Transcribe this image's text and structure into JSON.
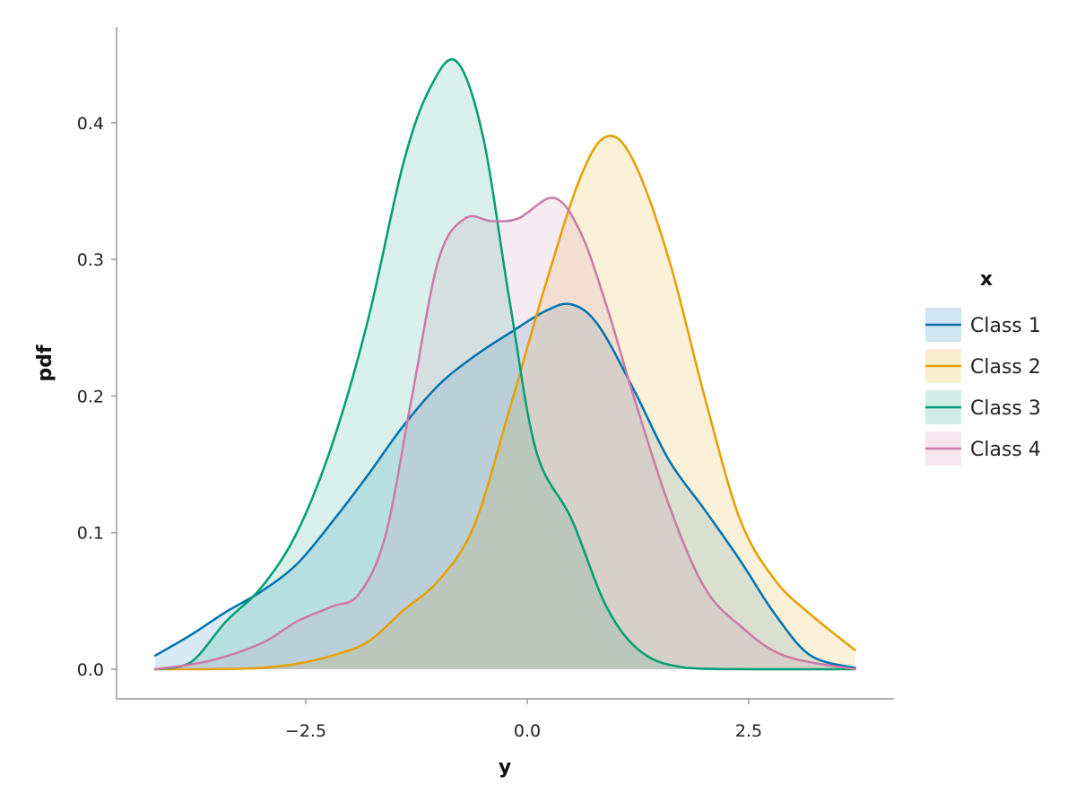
{
  "chart_data": {
    "type": "area",
    "title": "",
    "xlabel": "y",
    "ylabel": "pdf",
    "xlim": [
      -4.3,
      4.1
    ],
    "ylim": [
      -0.02,
      0.47
    ],
    "x_ticks": [
      -2.5,
      0.0,
      2.5
    ],
    "x_tick_labels": [
      "−2.5",
      "0.0",
      "2.5"
    ],
    "y_ticks": [
      0.0,
      0.1,
      0.2,
      0.3,
      0.4
    ],
    "y_tick_labels": [
      "0.0",
      "0.1",
      "0.2",
      "0.3",
      "0.4"
    ],
    "grid": false,
    "legend": {
      "title": "x",
      "position": "right"
    },
    "series": [
      {
        "name": "Class 1",
        "color": "#0072B2",
        "x": [
          -4.2,
          -3.8,
          -3.4,
          -3.0,
          -2.6,
          -2.2,
          -1.8,
          -1.4,
          -1.0,
          -0.6,
          -0.2,
          0.2,
          0.5,
          0.8,
          1.2,
          1.6,
          2.0,
          2.4,
          2.8,
          3.2,
          3.7
        ],
        "y": [
          0.01,
          0.025,
          0.042,
          0.057,
          0.077,
          0.108,
          0.142,
          0.178,
          0.208,
          0.229,
          0.246,
          0.262,
          0.267,
          0.252,
          0.205,
          0.153,
          0.117,
          0.08,
          0.04,
          0.01,
          0.001
        ]
      },
      {
        "name": "Class 2",
        "color": "#E69F00",
        "x": [
          -4.2,
          -3.6,
          -3.0,
          -2.6,
          -2.2,
          -1.8,
          -1.4,
          -1.0,
          -0.6,
          -0.2,
          0.2,
          0.6,
          0.9,
          1.2,
          1.6,
          2.0,
          2.4,
          2.8,
          3.2,
          3.7
        ],
        "y": [
          0.0,
          0.0,
          0.001,
          0.004,
          0.01,
          0.02,
          0.043,
          0.065,
          0.105,
          0.19,
          0.28,
          0.36,
          0.39,
          0.372,
          0.3,
          0.2,
          0.11,
          0.065,
          0.04,
          0.014
        ]
      },
      {
        "name": "Class 3",
        "color": "#009E73",
        "x": [
          -4.2,
          -3.8,
          -3.4,
          -3.0,
          -2.6,
          -2.2,
          -1.8,
          -1.4,
          -1.1,
          -0.8,
          -0.5,
          -0.2,
          0.1,
          0.5,
          0.9,
          1.3,
          1.8,
          2.5,
          3.7
        ],
        "y": [
          0.0,
          0.005,
          0.035,
          0.06,
          0.1,
          0.165,
          0.255,
          0.37,
          0.425,
          0.445,
          0.39,
          0.27,
          0.16,
          0.11,
          0.045,
          0.012,
          0.001,
          0.0,
          0.0
        ]
      },
      {
        "name": "Class 4",
        "color": "#CC79A7",
        "x": [
          -4.2,
          -3.6,
          -3.0,
          -2.6,
          -2.2,
          -1.9,
          -1.6,
          -1.3,
          -1.0,
          -0.7,
          -0.4,
          -0.1,
          0.3,
          0.6,
          0.9,
          1.2,
          1.6,
          2.0,
          2.4,
          2.9,
          3.7
        ],
        "y": [
          0.0,
          0.006,
          0.019,
          0.035,
          0.046,
          0.055,
          0.098,
          0.2,
          0.3,
          0.33,
          0.328,
          0.33,
          0.345,
          0.32,
          0.265,
          0.2,
          0.12,
          0.06,
          0.032,
          0.01,
          0.0
        ]
      }
    ]
  }
}
